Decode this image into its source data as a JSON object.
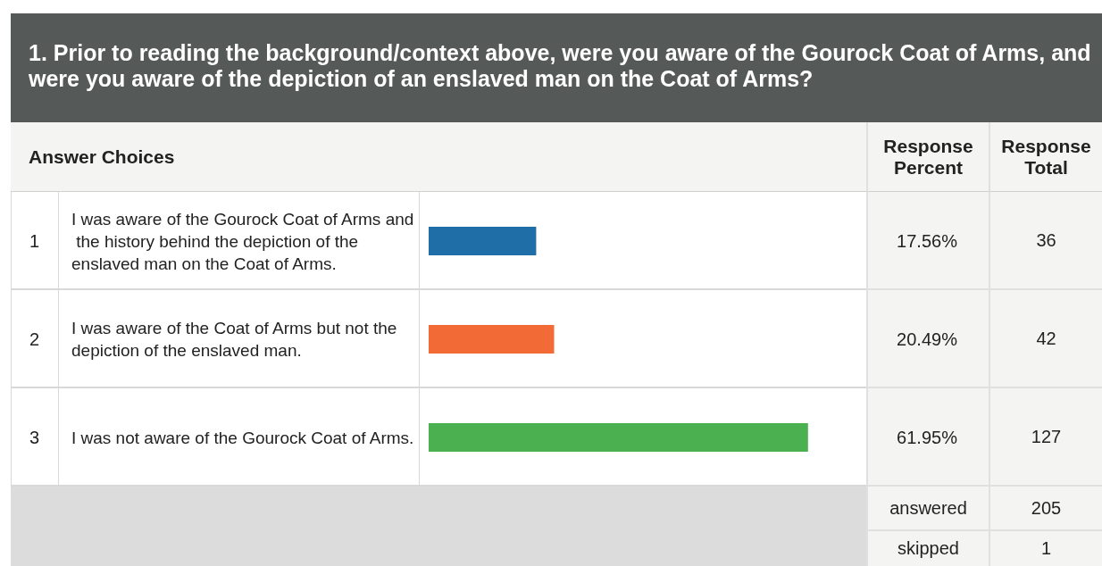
{
  "chart_data": {
    "type": "bar",
    "orientation": "horizontal",
    "title": "1. Prior to reading the background/context above, were you aware of the Gourock Coat of Arms, and were you aware of the depiction of an enslaved man on the Coat of Arms?",
    "categories": [
      "I was aware of the Gourock Coat of Arms and the history behind the depiction of the enslaved man on the Coat of Arms.",
      "I was aware of the Coat of Arms but not the depiction of the enslaved man.",
      "I was not aware of the Gourock Coat of Arms."
    ],
    "values": [
      17.56,
      20.49,
      61.95
    ],
    "colors": [
      "#1f6ea7",
      "#f26a35",
      "#4bb04f"
    ],
    "value_labels": [
      "17.56%",
      "20.49%",
      "61.95%"
    ],
    "tick_labels": "y",
    "annotations": [
      "Answer Choices",
      "Response Percent",
      "Response Total",
      "1",
      "2",
      "3",
      "36",
      "42",
      "127",
      "answered",
      "205",
      "skipped",
      "1"
    ]
  }
}
